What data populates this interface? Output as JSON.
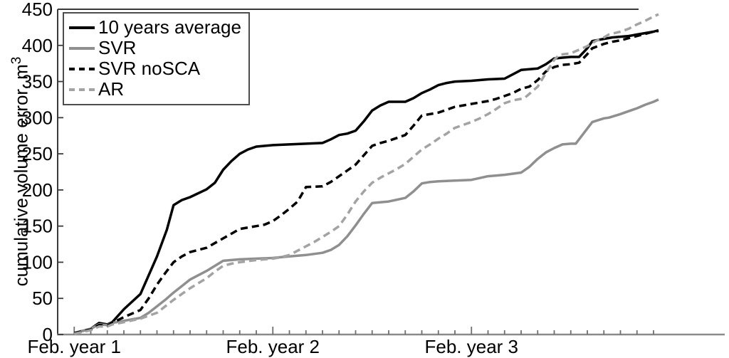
{
  "figure": {
    "background": "#ffffff"
  },
  "chart_data": {
    "type": "line",
    "title": "",
    "xlabel": "",
    "ylabel": "cumulative volume error, m",
    "ylabel_exponent": "3",
    "ylim": [
      0,
      450
    ],
    "xlim_months": [
      0,
      40.3
    ],
    "grid": false,
    "legend_position": "top-left",
    "y_ticks": [
      0,
      50,
      100,
      150,
      200,
      250,
      300,
      350,
      400,
      450
    ],
    "x_major_ticks": [
      {
        "month": 1,
        "label": "Feb. year 1"
      },
      {
        "month": 13,
        "label": "Feb. year 2"
      },
      {
        "month": 25,
        "label": "Feb. year 3"
      }
    ],
    "x_minor_tick_every_month": 1,
    "x_minor_tick_last_month": 36,
    "axis_color_left": "#3a3a3a",
    "axis_color_bottom": "#8a8a8a",
    "series": [
      {
        "name": "10 years average",
        "color": "#000000",
        "dash": "solid",
        "width": 3.5,
        "points": [
          [
            1,
            2
          ],
          [
            1.5,
            5
          ],
          [
            2,
            8
          ],
          [
            2.5,
            16
          ],
          [
            3,
            14
          ],
          [
            3.3,
            17
          ],
          [
            4,
            35
          ],
          [
            5,
            56
          ],
          [
            6,
            108
          ],
          [
            6.6,
            145
          ],
          [
            7,
            179
          ],
          [
            7.5,
            186
          ],
          [
            8,
            190
          ],
          [
            9,
            201
          ],
          [
            9.5,
            210
          ],
          [
            10,
            228
          ],
          [
            10.5,
            240
          ],
          [
            11,
            250
          ],
          [
            11.5,
            256
          ],
          [
            12,
            260
          ],
          [
            13,
            262
          ],
          [
            14,
            263
          ],
          [
            15,
            264
          ],
          [
            16,
            265
          ],
          [
            16.5,
            270
          ],
          [
            17,
            276
          ],
          [
            17.5,
            278
          ],
          [
            18,
            282
          ],
          [
            18.5,
            295
          ],
          [
            19,
            310
          ],
          [
            19.5,
            317
          ],
          [
            20,
            322
          ],
          [
            21,
            322
          ],
          [
            21.5,
            327
          ],
          [
            22,
            334
          ],
          [
            22.5,
            339
          ],
          [
            23,
            345
          ],
          [
            23.5,
            348
          ],
          [
            24,
            350
          ],
          [
            25,
            351
          ],
          [
            26,
            353
          ],
          [
            27,
            354
          ],
          [
            27.5,
            360
          ],
          [
            28,
            366
          ],
          [
            28.5,
            367
          ],
          [
            29,
            368
          ],
          [
            29.5,
            374
          ],
          [
            30,
            382
          ],
          [
            30.5,
            383
          ],
          [
            31,
            384
          ],
          [
            31.5,
            384
          ],
          [
            32,
            396
          ],
          [
            32.3,
            406
          ],
          [
            33,
            409
          ],
          [
            33.5,
            411
          ],
          [
            34,
            412
          ],
          [
            34.5,
            413
          ],
          [
            35,
            415
          ],
          [
            35.5,
            417
          ],
          [
            36,
            419
          ],
          [
            36.3,
            421
          ]
        ]
      },
      {
        "name": "SVR",
        "color": "#8f8f8f",
        "dash": "solid",
        "width": 3.5,
        "points": [
          [
            1,
            2
          ],
          [
            2,
            8
          ],
          [
            2.5,
            14
          ],
          [
            3,
            13
          ],
          [
            3.3,
            16
          ],
          [
            4,
            19
          ],
          [
            5,
            23
          ],
          [
            5.5,
            30
          ],
          [
            6,
            39
          ],
          [
            6.5,
            48
          ],
          [
            7,
            58
          ],
          [
            7.5,
            67
          ],
          [
            8,
            76
          ],
          [
            8.5,
            82
          ],
          [
            9,
            88
          ],
          [
            9.5,
            95
          ],
          [
            10,
            102
          ],
          [
            11,
            104
          ],
          [
            12,
            105
          ],
          [
            13,
            106
          ],
          [
            14,
            108
          ],
          [
            15,
            110
          ],
          [
            16,
            113
          ],
          [
            16.5,
            117
          ],
          [
            17,
            124
          ],
          [
            17.5,
            136
          ],
          [
            18,
            151
          ],
          [
            18.5,
            167
          ],
          [
            19,
            182
          ],
          [
            20,
            184
          ],
          [
            21,
            189
          ],
          [
            21.5,
            198
          ],
          [
            22,
            209
          ],
          [
            22.5,
            211
          ],
          [
            23,
            212
          ],
          [
            24,
            213
          ],
          [
            25,
            214
          ],
          [
            26,
            219
          ],
          [
            27,
            221
          ],
          [
            28,
            224
          ],
          [
            28.5,
            232
          ],
          [
            29,
            243
          ],
          [
            29.5,
            252
          ],
          [
            30,
            258
          ],
          [
            30.5,
            263
          ],
          [
            31,
            264
          ],
          [
            31.3,
            264
          ],
          [
            32,
            285
          ],
          [
            32.3,
            294
          ],
          [
            33,
            299
          ],
          [
            33.3,
            300
          ],
          [
            34,
            305
          ],
          [
            34.5,
            309
          ],
          [
            35,
            313
          ],
          [
            35.5,
            318
          ],
          [
            36,
            322
          ],
          [
            36.3,
            325
          ]
        ]
      },
      {
        "name": "SVR noSCA",
        "color": "#000000",
        "dash": "dashed",
        "width": 3.5,
        "points": [
          [
            1,
            2
          ],
          [
            2,
            7
          ],
          [
            2.5,
            13
          ],
          [
            3,
            12
          ],
          [
            3.3,
            16
          ],
          [
            4,
            24
          ],
          [
            5,
            34
          ],
          [
            5.5,
            50
          ],
          [
            6,
            69
          ],
          [
            6.5,
            85
          ],
          [
            7,
            100
          ],
          [
            7.5,
            108
          ],
          [
            8,
            114
          ],
          [
            9,
            120
          ],
          [
            10,
            133
          ],
          [
            11,
            146
          ],
          [
            12,
            150
          ],
          [
            12.5,
            152
          ],
          [
            13,
            157
          ],
          [
            13.5,
            165
          ],
          [
            14,
            174
          ],
          [
            14.5,
            184
          ],
          [
            15,
            204
          ],
          [
            16,
            205
          ],
          [
            16.5,
            211
          ],
          [
            17,
            219
          ],
          [
            17.5,
            227
          ],
          [
            18,
            235
          ],
          [
            18.5,
            248
          ],
          [
            19,
            261
          ],
          [
            19.5,
            265
          ],
          [
            20,
            268
          ],
          [
            20.5,
            272
          ],
          [
            21,
            276
          ],
          [
            21.5,
            289
          ],
          [
            22,
            303
          ],
          [
            22.5,
            305
          ],
          [
            23,
            307
          ],
          [
            23.5,
            311
          ],
          [
            24,
            315
          ],
          [
            24.5,
            317
          ],
          [
            25,
            319
          ],
          [
            25.5,
            321
          ],
          [
            26,
            323
          ],
          [
            26.5,
            326
          ],
          [
            27,
            330
          ],
          [
            27.5,
            334
          ],
          [
            28,
            340
          ],
          [
            28.5,
            343
          ],
          [
            29,
            352
          ],
          [
            29.5,
            364
          ],
          [
            30,
            370
          ],
          [
            30.5,
            373
          ],
          [
            31,
            374
          ],
          [
            31.5,
            376
          ],
          [
            32,
            388
          ],
          [
            32.3,
            396
          ],
          [
            33,
            402
          ],
          [
            33.5,
            405
          ],
          [
            34,
            407
          ],
          [
            34.5,
            410
          ],
          [
            35,
            413
          ],
          [
            35.5,
            416
          ],
          [
            36,
            419
          ],
          [
            36.3,
            420
          ]
        ]
      },
      {
        "name": "AR",
        "color": "#a3a3a3",
        "dash": "dashed",
        "width": 3.5,
        "points": [
          [
            1,
            1
          ],
          [
            2,
            6
          ],
          [
            2.5,
            11
          ],
          [
            3,
            11
          ],
          [
            3.3,
            14
          ],
          [
            4,
            17
          ],
          [
            5,
            22
          ],
          [
            5.5,
            26
          ],
          [
            6,
            30
          ],
          [
            6.5,
            39
          ],
          [
            7,
            48
          ],
          [
            7.5,
            56
          ],
          [
            8,
            64
          ],
          [
            8.5,
            71
          ],
          [
            9,
            78
          ],
          [
            9.5,
            87
          ],
          [
            10,
            95
          ],
          [
            10.5,
            98
          ],
          [
            11,
            100
          ],
          [
            12,
            103
          ],
          [
            13,
            105
          ],
          [
            13.5,
            107
          ],
          [
            14,
            110
          ],
          [
            14.5,
            116
          ],
          [
            15,
            122
          ],
          [
            15.5,
            128
          ],
          [
            16,
            135
          ],
          [
            16.5,
            142
          ],
          [
            17,
            150
          ],
          [
            17.5,
            166
          ],
          [
            18,
            184
          ],
          [
            18.5,
            198
          ],
          [
            19,
            210
          ],
          [
            19.5,
            217
          ],
          [
            20,
            223
          ],
          [
            20.5,
            229
          ],
          [
            21,
            236
          ],
          [
            21.5,
            246
          ],
          [
            22,
            256
          ],
          [
            22.5,
            263
          ],
          [
            23,
            271
          ],
          [
            23.5,
            278
          ],
          [
            24,
            286
          ],
          [
            24.5,
            290
          ],
          [
            25,
            294
          ],
          [
            25.5,
            299
          ],
          [
            26,
            305
          ],
          [
            26.5,
            312
          ],
          [
            27,
            320
          ],
          [
            27.5,
            324
          ],
          [
            28,
            326
          ],
          [
            28.2,
            327
          ],
          [
            29,
            343
          ],
          [
            29.5,
            362
          ],
          [
            30,
            380
          ],
          [
            30.3,
            387
          ],
          [
            31,
            389
          ],
          [
            31.3,
            392
          ],
          [
            32,
            399
          ],
          [
            32.5,
            406
          ],
          [
            33,
            411
          ],
          [
            33.3,
            415
          ],
          [
            34,
            419
          ],
          [
            34.5,
            423
          ],
          [
            35,
            429
          ],
          [
            35.5,
            434
          ],
          [
            36,
            440
          ],
          [
            36.3,
            443
          ]
        ]
      }
    ]
  }
}
